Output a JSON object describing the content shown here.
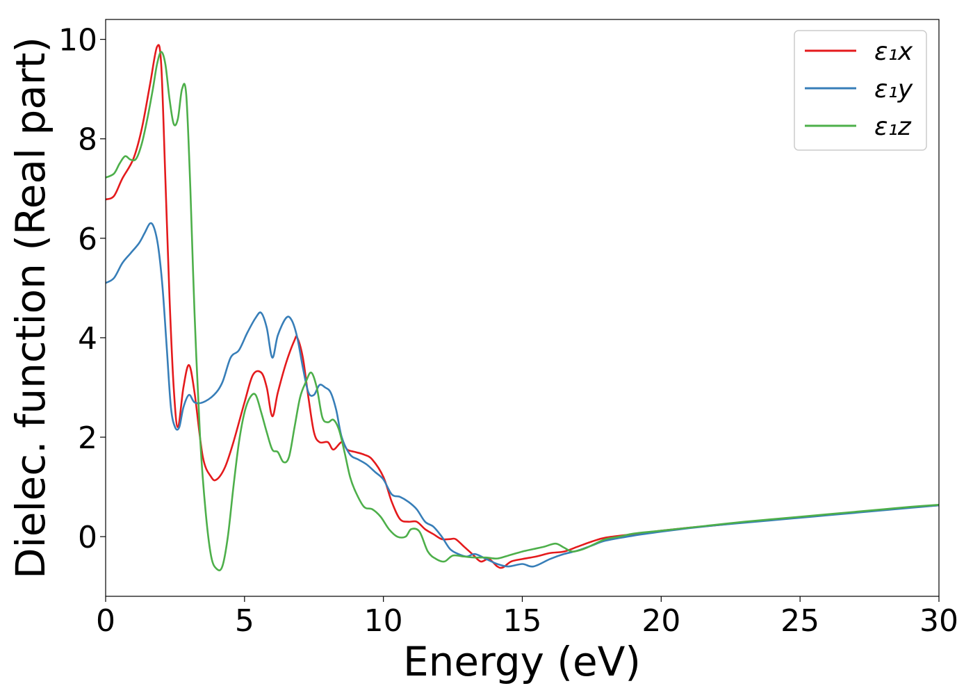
{
  "chart_data": {
    "type": "line",
    "title": "",
    "xlabel": "Energy (eV)",
    "ylabel": "Dielec. function (Real part)",
    "xlim": [
      0,
      30
    ],
    "ylim": [
      -1.2,
      10.4
    ],
    "xticks": [
      0,
      5,
      10,
      15,
      20,
      25,
      30
    ],
    "yticks": [
      0,
      2,
      4,
      6,
      8,
      10
    ],
    "grid": false,
    "legend_position": "top-right",
    "series": [
      {
        "name": "ε₁x",
        "color": "#e41a1c",
        "x": [
          0,
          0.3,
          0.6,
          1.0,
          1.3,
          1.6,
          1.85,
          2.0,
          2.15,
          2.3,
          2.45,
          2.6,
          2.8,
          3.0,
          3.2,
          3.5,
          3.8,
          4.0,
          4.3,
          4.6,
          5.0,
          5.3,
          5.6,
          5.8,
          6.0,
          6.2,
          6.5,
          6.8,
          6.9,
          7.1,
          7.3,
          7.5,
          7.7,
          8.0,
          8.2,
          8.5,
          8.7,
          9.0,
          9.3,
          9.6,
          10.0,
          10.3,
          10.6,
          10.9,
          11.2,
          11.5,
          11.8,
          12.1,
          12.4,
          12.6,
          12.9,
          13.2,
          13.5,
          13.8,
          14.1,
          14.3,
          14.6,
          15.0,
          15.5,
          16.0,
          16.5,
          17.0,
          17.5,
          18.0,
          19.0,
          20.0,
          21.0,
          22.0,
          23.0,
          24.0,
          25.0,
          26.0,
          27.0,
          28.0,
          29.0,
          30.0
        ],
        "y": [
          6.78,
          6.85,
          7.2,
          7.6,
          8.2,
          9.1,
          9.85,
          9.5,
          7.2,
          4.8,
          3.0,
          2.2,
          3.0,
          3.45,
          2.9,
          1.6,
          1.2,
          1.15,
          1.4,
          1.9,
          2.7,
          3.25,
          3.3,
          3.0,
          2.42,
          2.9,
          3.5,
          3.95,
          4.0,
          3.6,
          2.8,
          2.1,
          1.9,
          1.9,
          1.75,
          1.9,
          1.75,
          1.7,
          1.65,
          1.55,
          1.2,
          0.7,
          0.35,
          0.3,
          0.3,
          0.15,
          0.05,
          -0.05,
          -0.05,
          -0.05,
          -0.2,
          -0.35,
          -0.5,
          -0.45,
          -0.6,
          -0.62,
          -0.5,
          -0.45,
          -0.4,
          -0.33,
          -0.3,
          -0.2,
          -0.1,
          -0.02,
          0.05,
          0.12,
          0.18,
          0.23,
          0.29,
          0.34,
          0.39,
          0.44,
          0.49,
          0.54,
          0.59,
          0.63
        ]
      },
      {
        "name": "ε₁y",
        "color": "#377eb8",
        "x": [
          0,
          0.3,
          0.6,
          0.9,
          1.2,
          1.4,
          1.6,
          1.75,
          1.9,
          2.05,
          2.2,
          2.35,
          2.5,
          2.65,
          2.8,
          3.0,
          3.2,
          3.5,
          3.9,
          4.2,
          4.5,
          4.8,
          5.1,
          5.4,
          5.6,
          5.8,
          6.0,
          6.2,
          6.5,
          6.7,
          6.9,
          7.1,
          7.3,
          7.5,
          7.7,
          7.9,
          8.1,
          8.3,
          8.5,
          8.8,
          9.1,
          9.4,
          9.7,
          10.0,
          10.3,
          10.6,
          10.9,
          11.2,
          11.5,
          11.8,
          12.1,
          12.4,
          12.7,
          13.0,
          13.3,
          13.7,
          14.1,
          14.5,
          15.0,
          15.4,
          16.0,
          16.5,
          17.0,
          17.5,
          18.0,
          19.0,
          20.0,
          21.0,
          22.0,
          23.0,
          24.0,
          25.0,
          26.0,
          27.0,
          28.0,
          29.0,
          30.0
        ],
        "y": [
          5.1,
          5.2,
          5.5,
          5.7,
          5.9,
          6.1,
          6.3,
          6.2,
          5.8,
          5.0,
          3.8,
          2.6,
          2.2,
          2.2,
          2.6,
          2.85,
          2.7,
          2.7,
          2.85,
          3.1,
          3.6,
          3.75,
          4.1,
          4.4,
          4.5,
          4.2,
          3.6,
          4.05,
          4.4,
          4.35,
          4.0,
          3.4,
          2.9,
          2.85,
          3.05,
          3.0,
          2.9,
          2.55,
          2.0,
          1.65,
          1.55,
          1.45,
          1.3,
          1.15,
          0.85,
          0.8,
          0.7,
          0.55,
          0.3,
          0.2,
          0.0,
          -0.25,
          -0.35,
          -0.4,
          -0.35,
          -0.45,
          -0.55,
          -0.6,
          -0.55,
          -0.6,
          -0.45,
          -0.35,
          -0.28,
          -0.18,
          -0.08,
          0.02,
          0.1,
          0.17,
          0.23,
          0.28,
          0.33,
          0.38,
          0.43,
          0.48,
          0.53,
          0.58,
          0.63
        ]
      },
      {
        "name": "ε₁z",
        "color": "#4daf4a",
        "x": [
          0,
          0.3,
          0.5,
          0.7,
          0.9,
          1.1,
          1.3,
          1.5,
          1.7,
          1.85,
          2.0,
          2.15,
          2.3,
          2.45,
          2.6,
          2.75,
          2.9,
          3.05,
          3.2,
          3.4,
          3.6,
          3.8,
          4.0,
          4.2,
          4.4,
          4.6,
          4.8,
          5.0,
          5.2,
          5.4,
          5.6,
          5.8,
          6.0,
          6.2,
          6.4,
          6.6,
          6.8,
          7.0,
          7.2,
          7.4,
          7.6,
          7.8,
          8.0,
          8.2,
          8.4,
          8.6,
          8.8,
          9.0,
          9.3,
          9.6,
          9.9,
          10.2,
          10.5,
          10.8,
          11.0,
          11.3,
          11.6,
          11.9,
          12.2,
          12.5,
          12.9,
          13.3,
          13.7,
          14.1,
          14.5,
          15.0,
          15.4,
          15.8,
          16.2,
          16.5,
          16.8,
          17.2,
          17.6,
          18.0,
          18.5,
          19.0,
          20.0,
          21.0,
          22.0,
          23.0,
          24.0,
          25.0,
          26.0,
          27.0,
          28.0,
          29.0,
          30.0
        ],
        "y": [
          7.22,
          7.3,
          7.5,
          7.65,
          7.58,
          7.6,
          7.9,
          8.4,
          9.0,
          9.5,
          9.75,
          9.5,
          8.8,
          8.3,
          8.4,
          9.0,
          8.9,
          7.0,
          4.5,
          2.0,
          0.5,
          -0.4,
          -0.65,
          -0.6,
          0.0,
          1.0,
          1.9,
          2.5,
          2.8,
          2.85,
          2.5,
          2.1,
          1.75,
          1.7,
          1.5,
          1.6,
          2.2,
          2.8,
          3.1,
          3.3,
          3.0,
          2.4,
          2.3,
          2.35,
          2.15,
          1.7,
          1.2,
          0.9,
          0.6,
          0.55,
          0.4,
          0.15,
          0.0,
          0.0,
          0.15,
          0.1,
          -0.3,
          -0.45,
          -0.5,
          -0.38,
          -0.4,
          -0.42,
          -0.42,
          -0.44,
          -0.38,
          -0.3,
          -0.25,
          -0.2,
          -0.14,
          -0.22,
          -0.3,
          -0.25,
          -0.15,
          -0.05,
          0.0,
          0.06,
          0.12,
          0.18,
          0.24,
          0.3,
          0.35,
          0.4,
          0.45,
          0.5,
          0.55,
          0.6,
          0.64
        ]
      }
    ]
  }
}
